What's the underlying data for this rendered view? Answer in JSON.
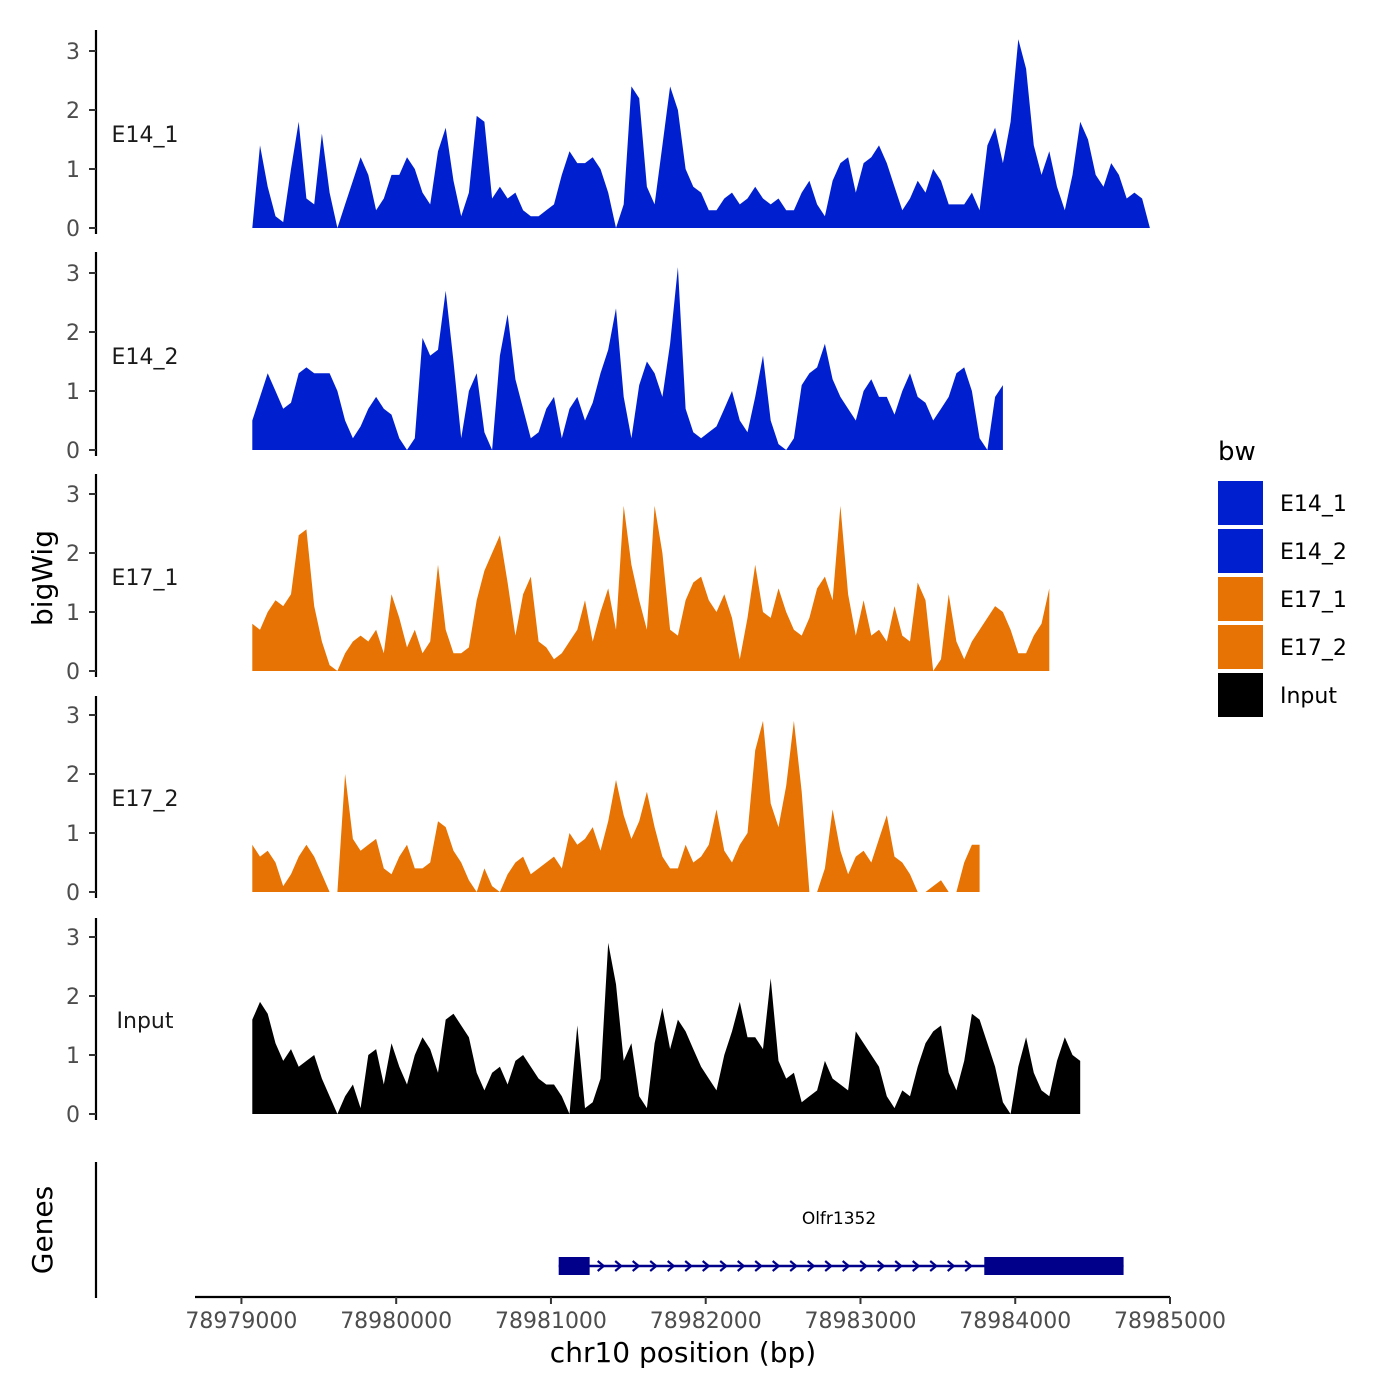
{
  "chart_data": {
    "type": "area",
    "y_axis_title": "bigWig",
    "genes_axis_title": "Genes",
    "x_axis_title": "chr10 position (bp)",
    "xlim": [
      78978700,
      78985000
    ],
    "x_ticks": [
      78979000,
      78980000,
      78981000,
      78982000,
      78983000,
      78984000,
      78985000
    ],
    "x_tick_labels": [
      "78979000",
      "78980000",
      "78981000",
      "78982000",
      "78983000",
      "78984000",
      "78985000"
    ],
    "ylim": [
      0,
      3.3
    ],
    "y_ticks": [
      0,
      1,
      2,
      3
    ],
    "y_tick_labels": [
      "0",
      "1",
      "2",
      "3"
    ],
    "x_start": 78979070,
    "x_step": 50,
    "legend": {
      "title": "bw",
      "entries": [
        {
          "label": "E14_1",
          "color": "#0020CF"
        },
        {
          "label": "E14_2",
          "color": "#0020CF"
        },
        {
          "label": "E17_1",
          "color": "#E67303"
        },
        {
          "label": "E17_2",
          "color": "#E67303"
        },
        {
          "label": "Input",
          "color": "#000000"
        }
      ]
    },
    "series": [
      {
        "name": "E14_1",
        "color": "#0020CF",
        "values": [
          0.0,
          1.4,
          0.7,
          0.2,
          0.1,
          1.0,
          1.8,
          0.5,
          0.4,
          1.6,
          0.6,
          0.0,
          0.4,
          0.8,
          1.2,
          0.9,
          0.3,
          0.5,
          0.9,
          0.9,
          1.2,
          1.0,
          0.6,
          0.4,
          1.3,
          1.7,
          0.8,
          0.2,
          0.6,
          1.9,
          1.8,
          0.5,
          0.7,
          0.5,
          0.6,
          0.3,
          0.2,
          0.2,
          0.3,
          0.4,
          0.9,
          1.3,
          1.1,
          1.1,
          1.2,
          1.0,
          0.6,
          0.0,
          0.4,
          2.4,
          2.2,
          0.7,
          0.4,
          1.4,
          2.4,
          2.0,
          1.0,
          0.7,
          0.6,
          0.3,
          0.3,
          0.5,
          0.6,
          0.4,
          0.5,
          0.7,
          0.5,
          0.4,
          0.5,
          0.3,
          0.3,
          0.6,
          0.8,
          0.4,
          0.2,
          0.8,
          1.1,
          1.2,
          0.6,
          1.1,
          1.2,
          1.4,
          1.1,
          0.7,
          0.3,
          0.5,
          0.8,
          0.6,
          1.0,
          0.8,
          0.4,
          0.4,
          0.4,
          0.6,
          0.3,
          1.4,
          1.7,
          1.1,
          1.8,
          3.2,
          2.7,
          1.4,
          0.9,
          1.3,
          0.7,
          0.3,
          0.9,
          1.8,
          1.5,
          0.9,
          0.7,
          1.1,
          0.9,
          0.5,
          0.6,
          0.5,
          0.0,
          0.0
        ]
      },
      {
        "name": "E14_2",
        "color": "#0020CF",
        "values": [
          0.5,
          0.9,
          1.3,
          1.0,
          0.7,
          0.8,
          1.3,
          1.4,
          1.3,
          1.3,
          1.3,
          1.0,
          0.5,
          0.2,
          0.4,
          0.7,
          0.9,
          0.7,
          0.6,
          0.2,
          0.0,
          0.2,
          1.9,
          1.6,
          1.7,
          2.7,
          1.5,
          0.2,
          1.0,
          1.3,
          0.3,
          0.0,
          1.6,
          2.3,
          1.2,
          0.7,
          0.2,
          0.3,
          0.7,
          0.9,
          0.2,
          0.7,
          0.9,
          0.5,
          0.8,
          1.3,
          1.7,
          2.4,
          0.9,
          0.2,
          1.1,
          1.5,
          1.3,
          0.9,
          1.8,
          3.1,
          0.7,
          0.3,
          0.2,
          0.3,
          0.4,
          0.7,
          1.0,
          0.5,
          0.3,
          0.9,
          1.6,
          0.5,
          0.1,
          0.0,
          0.2,
          1.1,
          1.3,
          1.4,
          1.8,
          1.2,
          0.9,
          0.7,
          0.5,
          1.0,
          1.2,
          0.9,
          0.9,
          0.6,
          1.0,
          1.3,
          0.9,
          0.8,
          0.5,
          0.7,
          0.9,
          1.3,
          1.4,
          1.0,
          0.2,
          0.0,
          0.9,
          1.1
        ]
      },
      {
        "name": "E17_1",
        "color": "#E67303",
        "values": [
          0.8,
          0.7,
          1.0,
          1.2,
          1.1,
          1.3,
          2.3,
          2.4,
          1.1,
          0.5,
          0.1,
          0.0,
          0.3,
          0.5,
          0.6,
          0.5,
          0.7,
          0.3,
          1.3,
          0.9,
          0.4,
          0.7,
          0.3,
          0.5,
          1.8,
          0.7,
          0.3,
          0.3,
          0.4,
          1.2,
          1.7,
          2.0,
          2.3,
          1.5,
          0.6,
          1.3,
          1.6,
          0.5,
          0.4,
          0.2,
          0.3,
          0.5,
          0.7,
          1.2,
          0.5,
          1.0,
          1.4,
          0.7,
          2.8,
          1.8,
          1.2,
          0.7,
          2.8,
          2.0,
          0.7,
          0.6,
          1.2,
          1.5,
          1.6,
          1.2,
          1.0,
          1.3,
          0.9,
          0.2,
          0.9,
          1.8,
          1.0,
          0.9,
          1.4,
          1.0,
          0.7,
          0.6,
          0.9,
          1.4,
          1.6,
          1.2,
          2.8,
          1.3,
          0.6,
          1.2,
          0.6,
          0.7,
          0.5,
          1.1,
          0.6,
          0.5,
          1.5,
          1.2,
          0.0,
          0.2,
          1.3,
          0.5,
          0.2,
          0.5,
          0.7,
          0.9,
          1.1,
          1.0,
          0.7,
          0.3,
          0.3,
          0.6,
          0.8,
          1.4
        ]
      },
      {
        "name": "E17_2",
        "color": "#E67303",
        "values": [
          0.8,
          0.6,
          0.7,
          0.5,
          0.1,
          0.3,
          0.6,
          0.8,
          0.6,
          0.3,
          0.0,
          0.0,
          2.0,
          0.9,
          0.7,
          0.8,
          0.9,
          0.4,
          0.3,
          0.6,
          0.8,
          0.4,
          0.4,
          0.5,
          1.2,
          1.1,
          0.7,
          0.5,
          0.2,
          0.0,
          0.4,
          0.1,
          0.0,
          0.3,
          0.5,
          0.6,
          0.3,
          0.4,
          0.5,
          0.6,
          0.4,
          1.0,
          0.8,
          0.9,
          1.1,
          0.7,
          1.2,
          1.9,
          1.3,
          0.9,
          1.2,
          1.7,
          1.1,
          0.6,
          0.4,
          0.4,
          0.8,
          0.5,
          0.6,
          0.8,
          1.4,
          0.7,
          0.5,
          0.8,
          1.0,
          2.4,
          2.9,
          1.5,
          1.1,
          1.8,
          2.9,
          1.7,
          0.0,
          0.0,
          0.4,
          1.4,
          0.7,
          0.3,
          0.6,
          0.7,
          0.5,
          0.9,
          1.3,
          0.6,
          0.5,
          0.3,
          0.0,
          0.0,
          0.1,
          0.2,
          0.0,
          0.0,
          0.5,
          0.8,
          0.8
        ]
      },
      {
        "name": "Input",
        "color": "#000000",
        "values": [
          1.6,
          1.9,
          1.7,
          1.2,
          0.9,
          1.1,
          0.8,
          0.9,
          1.0,
          0.6,
          0.3,
          0.0,
          0.3,
          0.5,
          0.1,
          1.0,
          1.1,
          0.5,
          1.2,
          0.8,
          0.5,
          1.0,
          1.3,
          1.1,
          0.7,
          1.6,
          1.7,
          1.5,
          1.3,
          0.7,
          0.4,
          0.7,
          0.8,
          0.5,
          0.9,
          1.0,
          0.8,
          0.6,
          0.5,
          0.5,
          0.3,
          0.0,
          1.5,
          0.1,
          0.2,
          0.6,
          2.9,
          2.2,
          0.9,
          1.2,
          0.3,
          0.1,
          1.2,
          1.8,
          1.1,
          1.6,
          1.4,
          1.1,
          0.8,
          0.6,
          0.4,
          1.0,
          1.4,
          1.9,
          1.3,
          1.3,
          1.1,
          2.3,
          0.9,
          0.6,
          0.7,
          0.2,
          0.3,
          0.4,
          0.9,
          0.6,
          0.5,
          0.4,
          1.4,
          1.2,
          1.0,
          0.8,
          0.3,
          0.1,
          0.4,
          0.3,
          0.8,
          1.2,
          1.4,
          1.5,
          0.7,
          0.4,
          0.9,
          1.7,
          1.6,
          1.2,
          0.8,
          0.2,
          0.0,
          0.8,
          1.3,
          0.7,
          0.4,
          0.3,
          0.9,
          1.3,
          1.0,
          0.9
        ]
      }
    ],
    "gene": {
      "name": "Olfr1352",
      "color": "#00008B",
      "strand": "+",
      "start": 78981050,
      "end": 78984700,
      "exons": [
        [
          78981050,
          78981250
        ],
        [
          78983800,
          78984700
        ]
      ]
    }
  }
}
